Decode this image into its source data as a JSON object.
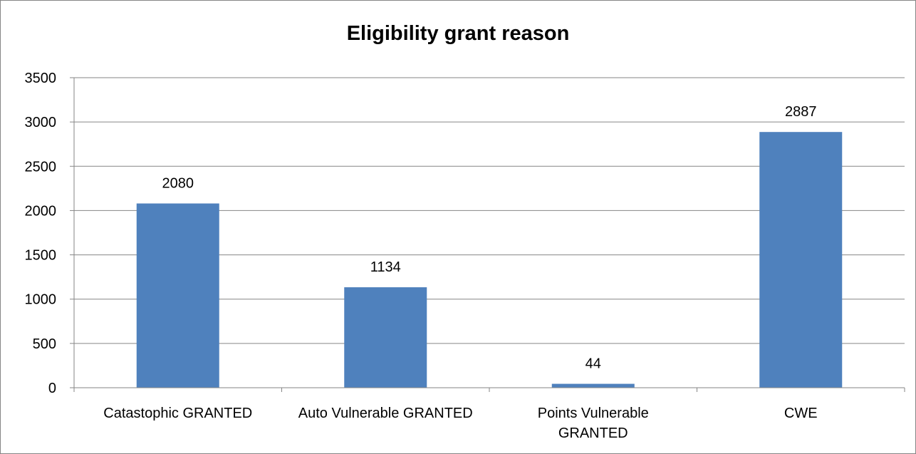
{
  "chart_data": {
    "type": "bar",
    "title": "Eligibility grant reason",
    "categories": [
      [
        "Catastophic GRANTED"
      ],
      [
        "Auto Vulnerable GRANTED"
      ],
      [
        "Points Vulnerable",
        "GRANTED"
      ],
      [
        "CWE"
      ]
    ],
    "values": [
      2080,
      1134,
      44,
      2887
    ],
    "data_labels": [
      "2080",
      "1134",
      "44",
      "2887"
    ],
    "y_ticks": [
      "0",
      "500",
      "1000",
      "1500",
      "2000",
      "2500",
      "3000",
      "3500"
    ],
    "ylim": [
      0,
      3500
    ],
    "grid": true,
    "legend": "none",
    "bar_color": "#4F81BD",
    "gridline_color": "#868686"
  }
}
